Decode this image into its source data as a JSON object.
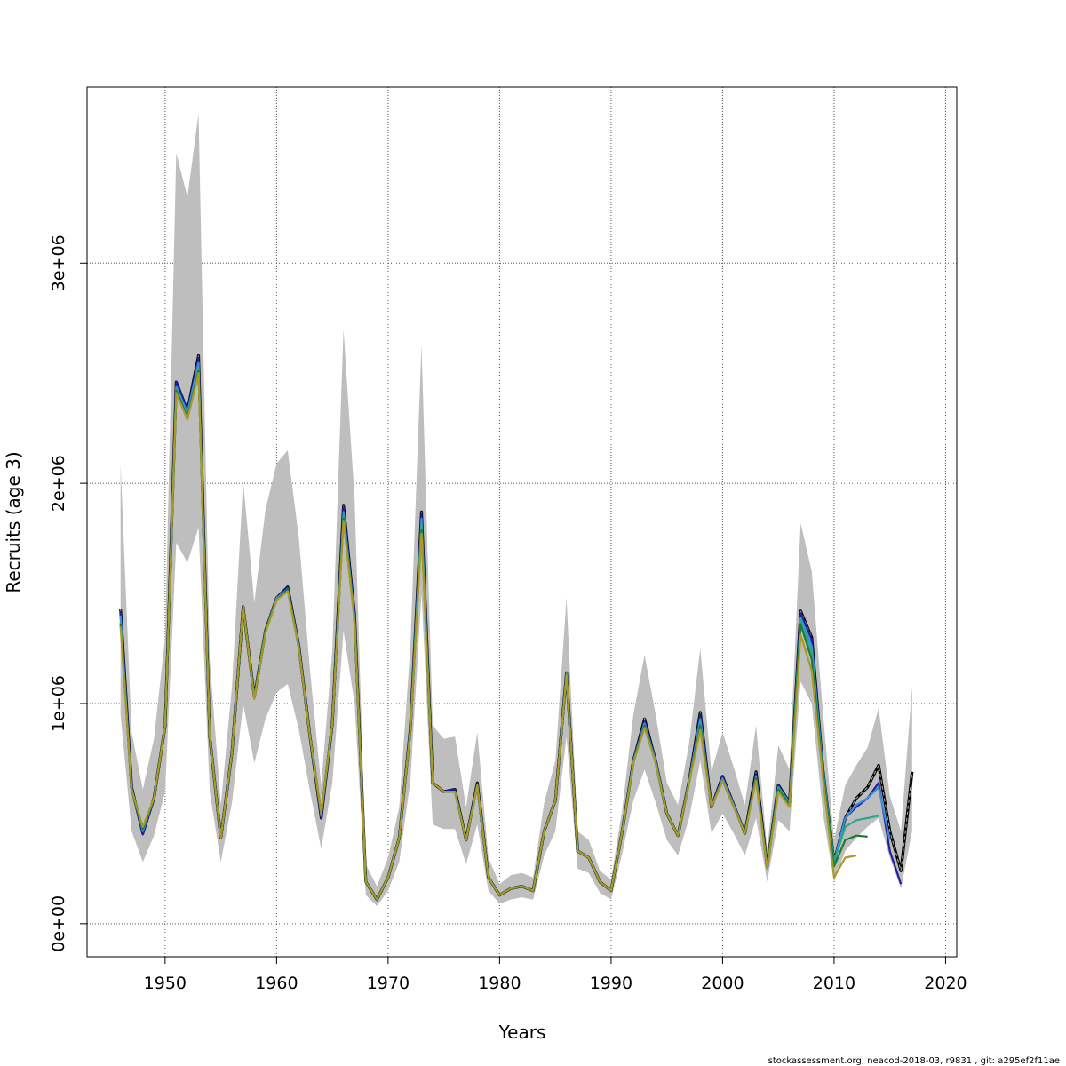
{
  "chart_data": {
    "type": "line",
    "xlabel": "Years",
    "ylabel": "Recruits (age 3)",
    "xlim": [
      1943,
      2021
    ],
    "ylim": [
      -150000,
      3800000
    ],
    "x_ticks": [
      1950,
      1960,
      1970,
      1980,
      1990,
      2000,
      2010,
      2020
    ],
    "x_tick_labels": [
      "1950",
      "1960",
      "1970",
      "1980",
      "1990",
      "2000",
      "2010",
      "2020"
    ],
    "y_ticks": [
      0,
      1000000,
      2000000,
      3000000
    ],
    "y_tick_labels": [
      "0e+00",
      "1e+06",
      "2e+06",
      "3e+06"
    ],
    "grid": true,
    "footer": "stockassessment.org, neacod-2018-03, r9831 , git: a295ef2f11ae",
    "band_color": "#bebebe",
    "band": {
      "x": [
        1946,
        1947,
        1948,
        1949,
        1950,
        1951,
        1952,
        1953,
        1954,
        1955,
        1956,
        1957,
        1958,
        1959,
        1960,
        1961,
        1962,
        1963,
        1964,
        1965,
        1966,
        1967,
        1968,
        1969,
        1970,
        1971,
        1972,
        1973,
        1974,
        1975,
        1976,
        1977,
        1978,
        1979,
        1980,
        1981,
        1982,
        1983,
        1984,
        1985,
        1986,
        1987,
        1988,
        1989,
        1990,
        1991,
        1992,
        1993,
        1994,
        1995,
        1996,
        1997,
        1998,
        1999,
        2000,
        2001,
        2002,
        2003,
        2004,
        2005,
        2006,
        2007,
        2008,
        2009,
        2010,
        2011,
        2012,
        2013,
        2014,
        2015,
        2016,
        2017
      ],
      "lower": [
        950000,
        420000,
        280000,
        400000,
        600000,
        1730000,
        1640000,
        1800000,
        600000,
        280000,
        550000,
        1000000,
        730000,
        930000,
        1050000,
        1090000,
        880000,
        600000,
        340000,
        640000,
        1330000,
        1000000,
        130000,
        80000,
        150000,
        280000,
        650000,
        1500000,
        450000,
        430000,
        430000,
        270000,
        450000,
        150000,
        90000,
        110000,
        120000,
        110000,
        310000,
        420000,
        850000,
        250000,
        230000,
        140000,
        110000,
        320000,
        560000,
        700000,
        550000,
        380000,
        310000,
        480000,
        740000,
        410000,
        500000,
        410000,
        310000,
        480000,
        190000,
        470000,
        420000,
        1100000,
        1000000,
        500000,
        190000,
        330000,
        390000,
        440000,
        480000,
        300000,
        160000,
        420000
      ],
      "upper": [
        2090000,
        870000,
        610000,
        840000,
        1300000,
        3500000,
        3300000,
        3680000,
        1200000,
        540000,
        1080000,
        2010000,
        1460000,
        1880000,
        2090000,
        2150000,
        1750000,
        1150000,
        630000,
        1240000,
        2700000,
        1930000,
        270000,
        170000,
        300000,
        530000,
        1260000,
        2630000,
        900000,
        840000,
        850000,
        530000,
        870000,
        300000,
        180000,
        220000,
        230000,
        210000,
        550000,
        740000,
        1480000,
        420000,
        380000,
        240000,
        200000,
        520000,
        950000,
        1220000,
        950000,
        640000,
        540000,
        820000,
        1250000,
        690000,
        870000,
        710000,
        540000,
        900000,
        340000,
        810000,
        700000,
        1820000,
        1600000,
        960000,
        380000,
        630000,
        720000,
        800000,
        980000,
        580000,
        420000,
        1080000
      ]
    },
    "series": [
      {
        "color": "#000000",
        "dashed": true,
        "x": [
          1946,
          1947,
          1948,
          1949,
          1950,
          1951,
          1952,
          1953,
          1954,
          1955,
          1956,
          1957,
          1958,
          1959,
          1960,
          1961,
          1962,
          1963,
          1964,
          1965,
          1966,
          1967,
          1968,
          1969,
          1970,
          1971,
          1972,
          1973,
          1974,
          1975,
          1976,
          1977,
          1978,
          1979,
          1980,
          1981,
          1982,
          1983,
          1984,
          1985,
          1986,
          1987,
          1988,
          1989,
          1990,
          1991,
          1992,
          1993,
          1994,
          1995,
          1996,
          1997,
          1998,
          1999,
          2000,
          2001,
          2002,
          2003,
          2004,
          2005,
          2006,
          2007,
          2008,
          2009,
          2010,
          2011,
          2012,
          2013,
          2014,
          2015,
          2016,
          2017
        ],
        "values": [
          1430000,
          620000,
          410000,
          570000,
          900000,
          2460000,
          2330000,
          2580000,
          850000,
          390000,
          780000,
          1440000,
          1030000,
          1330000,
          1480000,
          1530000,
          1260000,
          850000,
          480000,
          910000,
          1900000,
          1400000,
          190000,
          110000,
          210000,
          390000,
          890000,
          1870000,
          640000,
          600000,
          610000,
          380000,
          640000,
          210000,
          130000,
          160000,
          170000,
          150000,
          420000,
          560000,
          1140000,
          330000,
          300000,
          190000,
          150000,
          420000,
          740000,
          930000,
          740000,
          500000,
          400000,
          650000,
          960000,
          530000,
          670000,
          540000,
          410000,
          690000,
          260000,
          630000,
          550000,
          1420000,
          1300000,
          700000,
          280000,
          480000,
          570000,
          620000,
          720000,
          420000,
          240000,
          690000
        ]
      },
      {
        "color": "#1f1fa0",
        "dashed": false,
        "x": [
          1946,
          1947,
          1948,
          1949,
          1950,
          1951,
          1952,
          1953,
          1954,
          1955,
          1956,
          1957,
          1958,
          1959,
          1960,
          1961,
          1962,
          1963,
          1964,
          1965,
          1966,
          1967,
          1968,
          1969,
          1970,
          1971,
          1972,
          1973,
          1974,
          1975,
          1976,
          1977,
          1978,
          1979,
          1980,
          1981,
          1982,
          1983,
          1984,
          1985,
          1986,
          1987,
          1988,
          1989,
          1990,
          1991,
          1992,
          1993,
          1994,
          1995,
          1996,
          1997,
          1998,
          1999,
          2000,
          2001,
          2002,
          2003,
          2004,
          2005,
          2006,
          2007,
          2008,
          2009,
          2010,
          2011,
          2012,
          2013,
          2014,
          2015,
          2016
        ],
        "values": [
          1420000,
          620000,
          405000,
          570000,
          900000,
          2460000,
          2330000,
          2570000,
          850000,
          390000,
          780000,
          1440000,
          1030000,
          1330000,
          1480000,
          1530000,
          1260000,
          850000,
          480000,
          910000,
          1890000,
          1400000,
          190000,
          110000,
          210000,
          390000,
          890000,
          1860000,
          640000,
          600000,
          610000,
          380000,
          640000,
          210000,
          130000,
          160000,
          170000,
          150000,
          420000,
          560000,
          1140000,
          330000,
          300000,
          190000,
          150000,
          420000,
          740000,
          920000,
          740000,
          500000,
          400000,
          650000,
          950000,
          530000,
          670000,
          540000,
          410000,
          680000,
          260000,
          630000,
          550000,
          1410000,
          1290000,
          700000,
          280000,
          480000,
          530000,
          570000,
          640000,
          330000,
          180000
        ]
      },
      {
        "color": "#3a8fd8",
        "dashed": false,
        "x": [
          1946,
          1947,
          1948,
          1949,
          1950,
          1951,
          1952,
          1953,
          1954,
          1955,
          1956,
          1957,
          1958,
          1959,
          1960,
          1961,
          1962,
          1963,
          1964,
          1965,
          1966,
          1967,
          1968,
          1969,
          1970,
          1971,
          1972,
          1973,
          1974,
          1975,
          1976,
          1977,
          1978,
          1979,
          1980,
          1981,
          1982,
          1983,
          1984,
          1985,
          1986,
          1987,
          1988,
          1989,
          1990,
          1991,
          1992,
          1993,
          1994,
          1995,
          1996,
          1997,
          1998,
          1999,
          2000,
          2001,
          2002,
          2003,
          2004,
          2005,
          2006,
          2007,
          2008,
          2009,
          2010,
          2011,
          2012,
          2013,
          2014,
          2015
        ],
        "values": [
          1400000,
          610000,
          420000,
          570000,
          900000,
          2440000,
          2320000,
          2550000,
          850000,
          390000,
          780000,
          1440000,
          1030000,
          1330000,
          1480000,
          1520000,
          1260000,
          850000,
          490000,
          910000,
          1870000,
          1390000,
          190000,
          110000,
          210000,
          390000,
          890000,
          1840000,
          640000,
          600000,
          600000,
          380000,
          630000,
          210000,
          130000,
          160000,
          170000,
          150000,
          420000,
          560000,
          1140000,
          330000,
          300000,
          190000,
          150000,
          420000,
          740000,
          910000,
          740000,
          500000,
          400000,
          650000,
          930000,
          530000,
          660000,
          540000,
          410000,
          670000,
          260000,
          620000,
          550000,
          1390000,
          1260000,
          700000,
          280000,
          480000,
          540000,
          570000,
          620000,
          380000
        ]
      },
      {
        "color": "#2aa88a",
        "dashed": false,
        "x": [
          1946,
          1947,
          1948,
          1949,
          1950,
          1951,
          1952,
          1953,
          1954,
          1955,
          1956,
          1957,
          1958,
          1959,
          1960,
          1961,
          1962,
          1963,
          1964,
          1965,
          1966,
          1967,
          1968,
          1969,
          1970,
          1971,
          1972,
          1973,
          1974,
          1975,
          1976,
          1977,
          1978,
          1979,
          1980,
          1981,
          1982,
          1983,
          1984,
          1985,
          1986,
          1987,
          1988,
          1989,
          1990,
          1991,
          1992,
          1993,
          1994,
          1995,
          1996,
          1997,
          1998,
          1999,
          2000,
          2001,
          2002,
          2003,
          2004,
          2005,
          2006,
          2007,
          2008,
          2009,
          2010,
          2011,
          2012,
          2013,
          2014
        ],
        "values": [
          1370000,
          610000,
          430000,
          570000,
          900000,
          2420000,
          2300000,
          2520000,
          850000,
          390000,
          780000,
          1440000,
          1030000,
          1330000,
          1470000,
          1520000,
          1250000,
          850000,
          500000,
          910000,
          1850000,
          1380000,
          190000,
          110000,
          210000,
          390000,
          880000,
          1810000,
          640000,
          600000,
          600000,
          380000,
          630000,
          210000,
          130000,
          160000,
          170000,
          150000,
          420000,
          560000,
          1130000,
          330000,
          300000,
          190000,
          150000,
          420000,
          730000,
          900000,
          730000,
          500000,
          400000,
          640000,
          910000,
          530000,
          650000,
          530000,
          410000,
          660000,
          260000,
          620000,
          540000,
          1380000,
          1230000,
          690000,
          280000,
          440000,
          470000,
          480000,
          490000
        ]
      },
      {
        "color": "#1e7a3a",
        "dashed": false,
        "x": [
          1946,
          1947,
          1948,
          1949,
          1950,
          1951,
          1952,
          1953,
          1954,
          1955,
          1956,
          1957,
          1958,
          1959,
          1960,
          1961,
          1962,
          1963,
          1964,
          1965,
          1966,
          1967,
          1968,
          1969,
          1970,
          1971,
          1972,
          1973,
          1974,
          1975,
          1976,
          1977,
          1978,
          1979,
          1980,
          1981,
          1982,
          1983,
          1984,
          1985,
          1986,
          1987,
          1988,
          1989,
          1990,
          1991,
          1992,
          1993,
          1994,
          1995,
          1996,
          1997,
          1998,
          1999,
          2000,
          2001,
          2002,
          2003,
          2004,
          2005,
          2006,
          2007,
          2008,
          2009,
          2010,
          2011,
          2012,
          2013
        ],
        "values": [
          1360000,
          610000,
          430000,
          570000,
          900000,
          2420000,
          2300000,
          2510000,
          850000,
          390000,
          780000,
          1440000,
          1030000,
          1330000,
          1470000,
          1520000,
          1250000,
          850000,
          500000,
          910000,
          1840000,
          1380000,
          190000,
          110000,
          210000,
          390000,
          880000,
          1790000,
          640000,
          600000,
          600000,
          380000,
          630000,
          210000,
          130000,
          160000,
          170000,
          150000,
          420000,
          560000,
          1130000,
          330000,
          300000,
          190000,
          150000,
          420000,
          730000,
          900000,
          730000,
          500000,
          400000,
          640000,
          900000,
          530000,
          650000,
          530000,
          410000,
          660000,
          260000,
          610000,
          540000,
          1360000,
          1200000,
          680000,
          260000,
          380000,
          400000,
          395000
        ]
      },
      {
        "color": "#a89a28",
        "dashed": false,
        "x": [
          1946,
          1947,
          1948,
          1949,
          1950,
          1951,
          1952,
          1953,
          1954,
          1955,
          1956,
          1957,
          1958,
          1959,
          1960,
          1961,
          1962,
          1963,
          1964,
          1965,
          1966,
          1967,
          1968,
          1969,
          1970,
          1971,
          1972,
          1973,
          1974,
          1975,
          1976,
          1977,
          1978,
          1979,
          1980,
          1981,
          1982,
          1983,
          1984,
          1985,
          1986,
          1987,
          1988,
          1989,
          1990,
          1991,
          1992,
          1993,
          1994,
          1995,
          1996,
          1997,
          1998,
          1999,
          2000,
          2001,
          2002,
          2003,
          2004,
          2005,
          2006,
          2007,
          2008,
          2009,
          2010,
          2011,
          2012
        ],
        "values": [
          1350000,
          610000,
          440000,
          570000,
          900000,
          2410000,
          2290000,
          2500000,
          850000,
          390000,
          780000,
          1440000,
          1020000,
          1320000,
          1470000,
          1510000,
          1250000,
          850000,
          500000,
          910000,
          1830000,
          1370000,
          190000,
          110000,
          210000,
          390000,
          880000,
          1770000,
          640000,
          600000,
          600000,
          380000,
          630000,
          210000,
          130000,
          160000,
          170000,
          150000,
          420000,
          560000,
          1130000,
          330000,
          300000,
          190000,
          150000,
          420000,
          730000,
          890000,
          730000,
          500000,
          400000,
          640000,
          880000,
          530000,
          650000,
          530000,
          410000,
          650000,
          250000,
          600000,
          530000,
          1310000,
          1150000,
          660000,
          210000,
          300000,
          310000
        ]
      }
    ]
  }
}
